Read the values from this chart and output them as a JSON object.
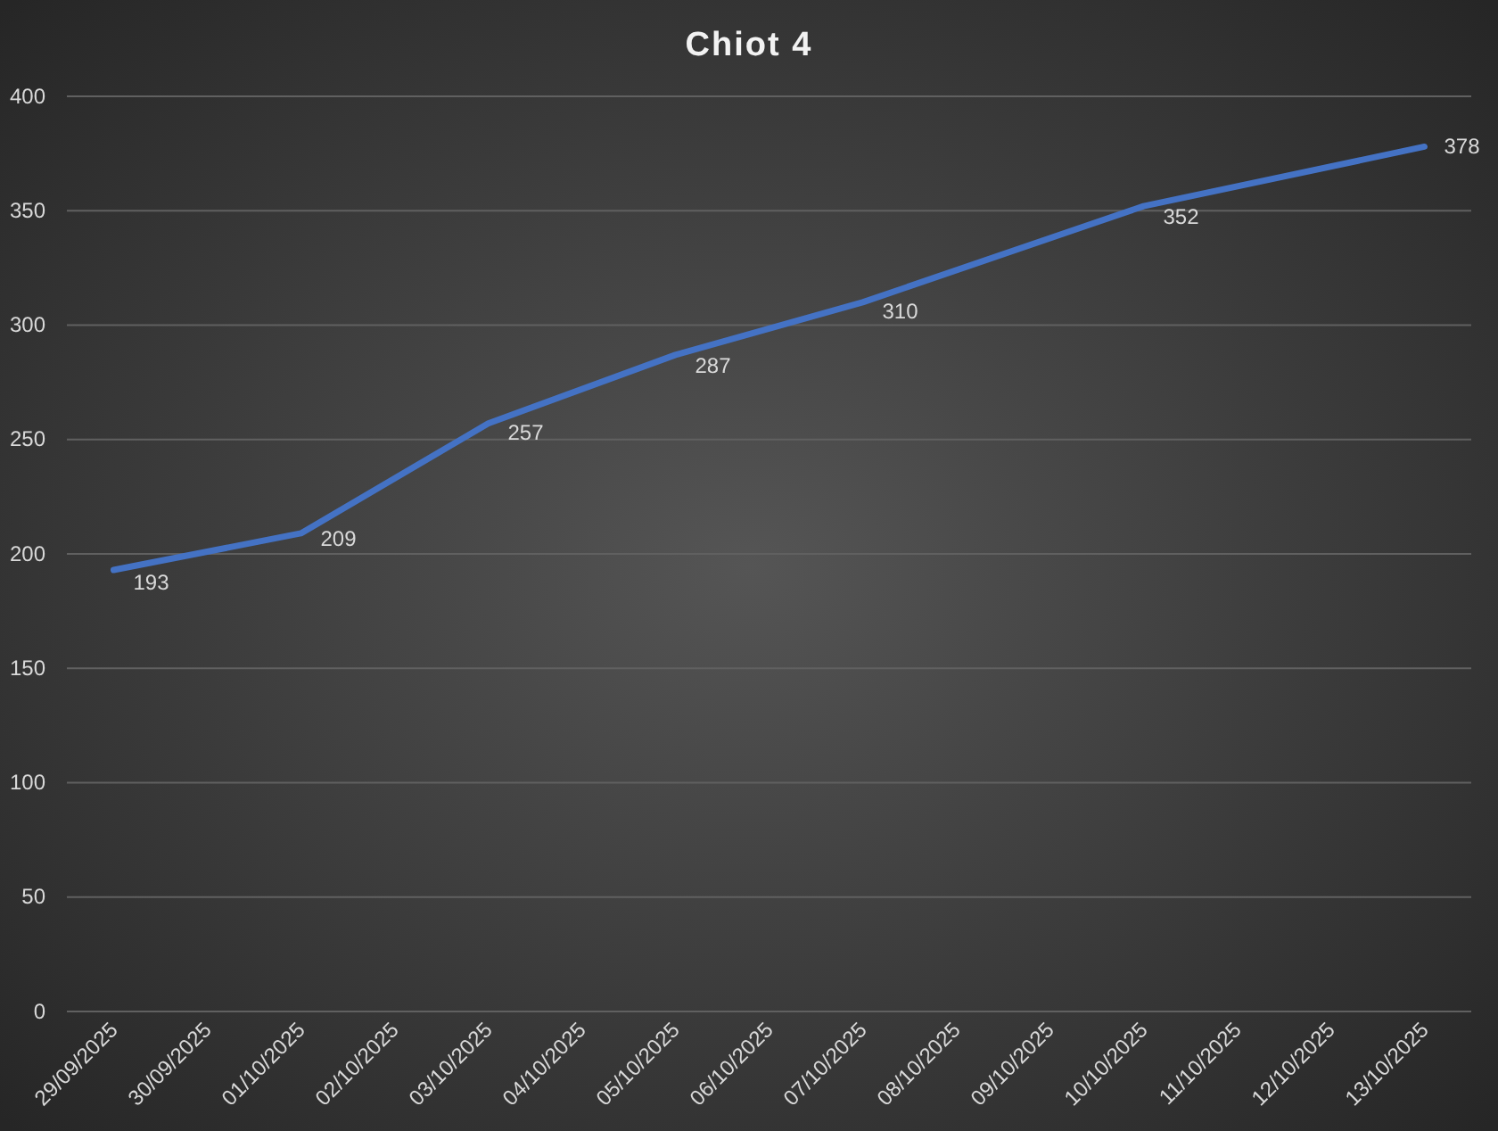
{
  "chart_data": {
    "type": "line",
    "title": "Chiot 4",
    "x": [
      "2025-09-29",
      "2025-10-01",
      "2025-10-03",
      "2025-10-05",
      "2025-10-07",
      "2025-10-10",
      "2025-10-13"
    ],
    "values": [
      193,
      209,
      257,
      287,
      310,
      352,
      378
    ],
    "color": "#4472c4",
    "xlim": [
      "2025-09-28T12:00",
      "2025-10-13T12:00"
    ],
    "xticks": [
      {
        "value": "2025-09-29",
        "label": "29/09/2025"
      },
      {
        "value": "2025-09-30",
        "label": "30/09/2025"
      },
      {
        "value": "2025-10-01",
        "label": "01/10/2025"
      },
      {
        "value": "2025-10-02",
        "label": "02/10/2025"
      },
      {
        "value": "2025-10-03",
        "label": "03/10/2025"
      },
      {
        "value": "2025-10-04",
        "label": "04/10/2025"
      },
      {
        "value": "2025-10-05",
        "label": "05/10/2025"
      },
      {
        "value": "2025-10-06",
        "label": "06/10/2025"
      },
      {
        "value": "2025-10-07",
        "label": "07/10/2025"
      },
      {
        "value": "2025-10-08",
        "label": "08/10/2025"
      },
      {
        "value": "2025-10-09",
        "label": "09/10/2025"
      },
      {
        "value": "2025-10-10",
        "label": "10/10/2025"
      },
      {
        "value": "2025-10-11",
        "label": "11/10/2025"
      },
      {
        "value": "2025-10-12",
        "label": "12/10/2025"
      },
      {
        "value": "2025-10-13",
        "label": "13/10/2025"
      }
    ],
    "ylim": [
      0,
      400
    ],
    "yticks": [
      0,
      50,
      100,
      150,
      200,
      250,
      300,
      350,
      400
    ],
    "grid": "y",
    "data_labels": true
  }
}
